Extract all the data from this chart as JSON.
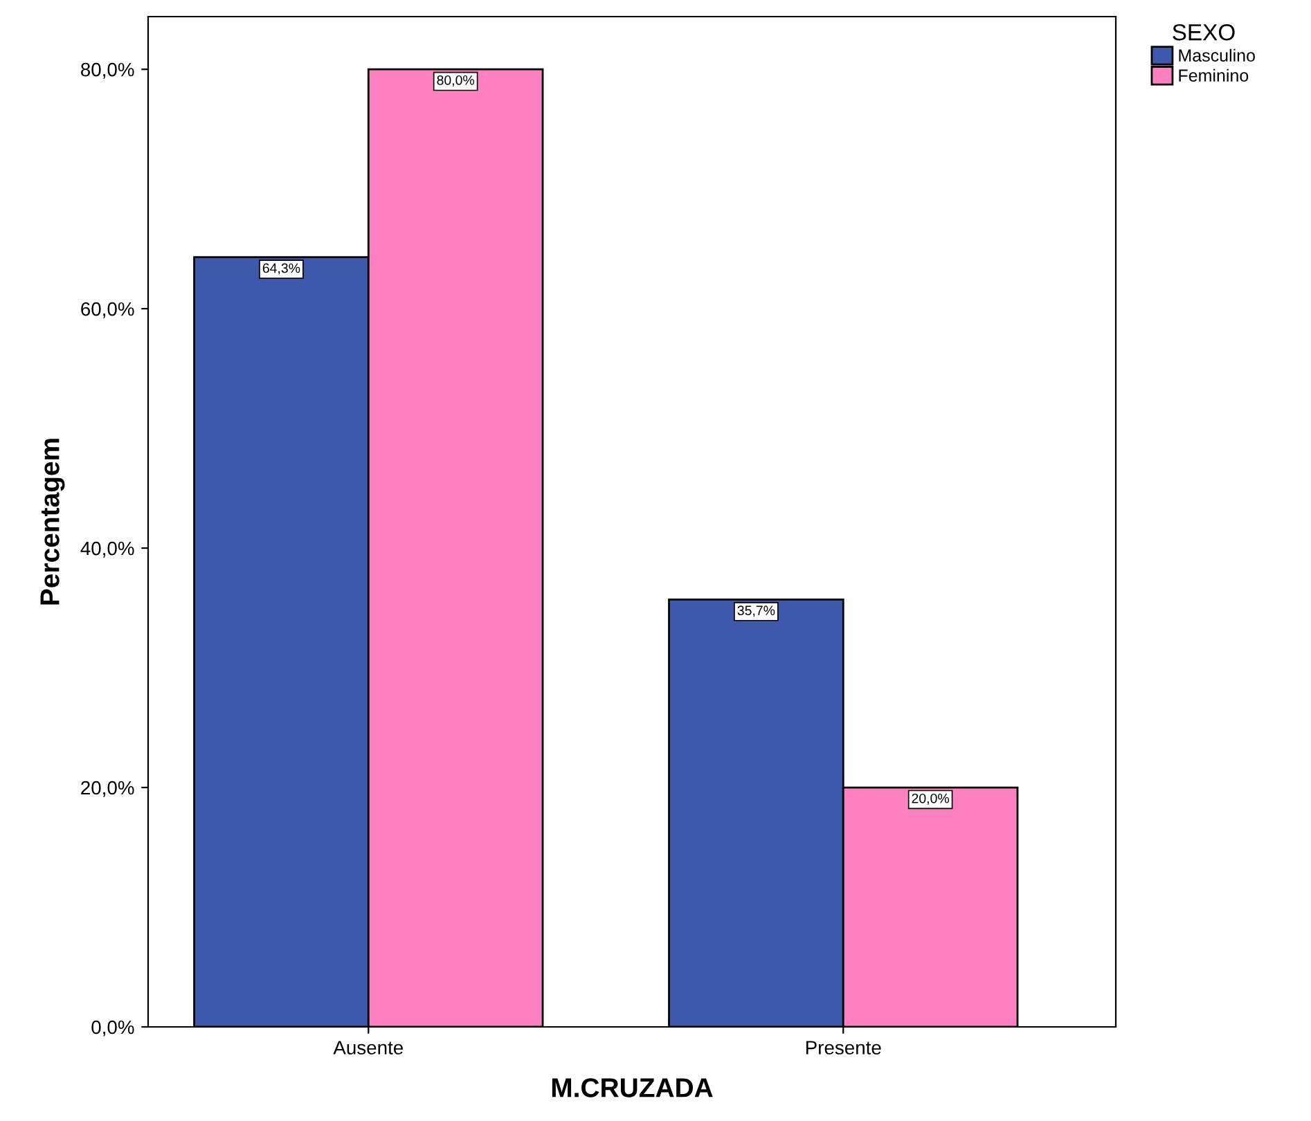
{
  "chart_data": {
    "type": "bar",
    "xlabel": "M.CRUZADA",
    "ylabel": "Percentagem",
    "legend_title": "SEXO",
    "categories": [
      "Ausente",
      "Presente"
    ],
    "series": [
      {
        "name": "Masculino",
        "color": "#3e58ac",
        "values": [
          64.3,
          35.7
        ],
        "value_labels": [
          "64,3%",
          "35,7%"
        ]
      },
      {
        "name": "Feminino",
        "color": "#fd80c1",
        "values": [
          80.0,
          20.0
        ],
        "value_labels": [
          "80,0%",
          "20,0%"
        ]
      }
    ],
    "ylim": [
      0,
      84.4
    ],
    "yticks": [
      {
        "value": 0,
        "label": "0,0%"
      },
      {
        "value": 20,
        "label": "20,0%"
      },
      {
        "value": 40,
        "label": "40,0%"
      },
      {
        "value": 60,
        "label": "60,0%"
      },
      {
        "value": 80,
        "label": "80,0%"
      }
    ],
    "grid": false,
    "legend": "top right"
  }
}
